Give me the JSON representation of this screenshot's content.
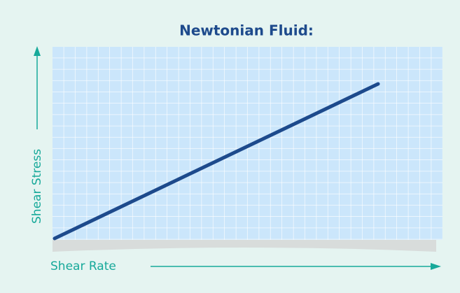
{
  "title": "Newtonian Fluid:",
  "x_axis_label": "Shear Rate",
  "y_axis_label": "Shear Stress"
}
